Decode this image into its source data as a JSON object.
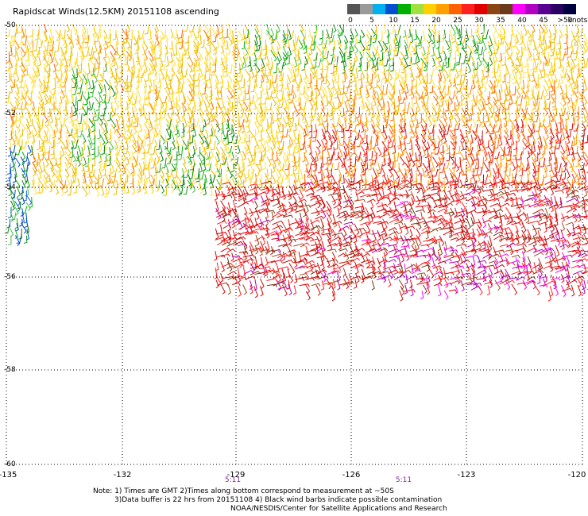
{
  "title": "Rapidscat Winds(12.5KM) 20151108 ascending",
  "scale": {
    "unit": "knots",
    "colors": [
      "#555555",
      "#9a9a9a",
      "#00b0f0",
      "#0050d0",
      "#00b000",
      "#a0e040",
      "#ffd000",
      "#ffa000",
      "#ff6000",
      "#ff2020",
      "#e00000",
      "#8b4513",
      "#6a3a1a",
      "#ff00ff",
      "#b000c0",
      "#5a0090",
      "#2a0060",
      "#000040"
    ],
    "labels": [
      "0",
      "5",
      "10",
      "15",
      "20",
      "25",
      "30",
      "35",
      "40",
      "45",
      ">50"
    ]
  },
  "map": {
    "lat_labels": [
      "-50",
      "-52",
      "-54",
      "-56",
      "-58",
      "-60"
    ],
    "lon_labels": [
      "-135",
      "-132",
      "-129",
      "-126",
      "-123",
      "-120"
    ],
    "time_labels": [
      "5:11",
      "5:11"
    ]
  },
  "notes": [
    "Note: 1) Times are GMT 2)Times along bottom correspond to measurement at ~50S",
    "3)Data buffer is 22 hrs from 20151108 4) Black wind barbs indicate possible contamination",
    "NOAA/NESDIS/Center for Satellite Applications and Research"
  ]
}
